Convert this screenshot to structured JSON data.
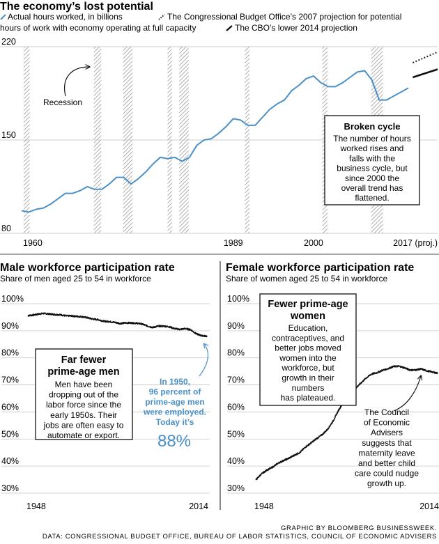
{
  "title": "The economy’s lost potential",
  "legend": [
    {
      "key": "actual",
      "label": "Actual hours worked, in billions",
      "color": "#4a90c8"
    },
    {
      "key": "cbo2007",
      "label": "The Congressional Budget Office’s 2007 projection for potential hours of work with economy operating at full capacity",
      "color": "#111111"
    },
    {
      "key": "cbo2014",
      "label": "The CBO’s lower 2014 projection",
      "color": "#111111"
    }
  ],
  "legend_lines": [
    "Actual hours worked, in billions",
    "The Congressional Budget Office’s 2007 projection for potential",
    "hours of work with economy operating at full capacity",
    "The CBO’s lower 2014 projection"
  ],
  "recession_label": "Recession",
  "callout_hours": {
    "title": "Broken cycle",
    "lines": [
      "The number of hours",
      "worked rises and",
      "falls with the",
      "business cycle, but",
      "since 2000 the",
      "overall trend has",
      "flattened."
    ]
  },
  "callout_male": {
    "title_lines": [
      "Far fewer",
      "prime-age men"
    ],
    "lines": [
      "Men have been",
      "dropping out of the",
      "labor force since the",
      "early 1950s. Their",
      "jobs are often easy to",
      "automate or export."
    ]
  },
  "note_male": {
    "lines": [
      "In 1950,",
      "96 percent of",
      "prime-age men",
      "were employed.",
      "Today it’s"
    ],
    "big": "88%",
    "color": "#4a90c8"
  },
  "callout_female": {
    "title_lines": [
      "Fewer prime-age",
      "women"
    ],
    "lines": [
      "Education,",
      "contraceptives, and",
      "better jobs moved",
      "women into the",
      "workforce, but",
      "growth in their",
      "numbers",
      "has plateaued."
    ]
  },
  "note_female": {
    "lines": [
      "The Council",
      "of Economic",
      "Advisers",
      "suggests that",
      "maternity leave",
      "and better child",
      "care could nudge",
      "growth up."
    ]
  },
  "credit": {
    "graphic": "GRAPHIC BY BLOOMBERG BUSINESSWEEK.",
    "data": "DATA: CONGRESSIONAL BUDGET OFFICE, BUREAU OF LABOR STATISTICS, COUNCIL OF ECONOMIC ADVISERS"
  },
  "chart_data": [
    {
      "type": "line",
      "title": "The economy’s lost potential",
      "ylabel": "",
      "xlabel": "",
      "xlim": [
        1960,
        2017
      ],
      "ylim": [
        80,
        220
      ],
      "yticks": [
        80,
        150,
        220
      ],
      "xtick_labels": [
        {
          "x": 1960,
          "label": "1960"
        },
        {
          "x": 1989,
          "label": "1989"
        },
        {
          "x": 2000,
          "label": "2000"
        },
        {
          "x": 2017,
          "label": "2017 (proj.)"
        }
      ],
      "recessions": [
        [
          1960.3,
          1961.1
        ],
        [
          1969.9,
          1970.9
        ],
        [
          1973.9,
          1975.2
        ],
        [
          1980.0,
          1980.6
        ],
        [
          1981.6,
          1982.9
        ],
        [
          1990.6,
          1991.2
        ],
        [
          2001.2,
          2001.9
        ],
        [
          2007.9,
          2009.5
        ]
      ],
      "series": [
        {
          "name": "Actual hours worked, in billions",
          "style": "solid",
          "color": "#4a90c8",
          "x": [
            1960,
            1961,
            1962,
            1963,
            1964,
            1965,
            1966,
            1967,
            1968,
            1969,
            1970,
            1971,
            1972,
            1973,
            1974,
            1975,
            1976,
            1977,
            1978,
            1979,
            1980,
            1981,
            1982,
            1983,
            1984,
            1985,
            1986,
            1987,
            1988,
            1989,
            1990,
            1991,
            1992,
            1993,
            1994,
            1995,
            1996,
            1997,
            1998,
            1999,
            2000,
            2001,
            2002,
            2003,
            2004,
            2005,
            2006,
            2007,
            2008,
            2009,
            2010,
            2011,
            2012,
            2013
          ],
          "y": [
            97,
            96,
            98,
            99,
            102,
            106,
            110,
            110,
            112,
            115,
            113,
            113,
            117,
            122,
            122,
            117,
            121,
            126,
            132,
            137,
            136,
            137,
            134,
            137,
            146,
            150,
            151,
            155,
            160,
            166,
            165,
            161,
            161,
            167,
            173,
            177,
            180,
            187,
            191,
            196,
            198,
            193,
            190,
            190,
            193,
            197,
            201,
            202,
            195,
            180,
            180,
            183,
            186,
            189
          ]
        },
        {
          "name": "The Congressional Budget Office’s 2007 projection for potential hours of work with economy operating at full capacity",
          "style": "dotted",
          "color": "#111111",
          "x": [
            2013.6,
            2017
          ],
          "y": [
            208,
            216
          ]
        },
        {
          "name": "The CBO’s lower 2014 projection",
          "style": "solid-bold",
          "color": "#111111",
          "x": [
            2013.6,
            2017
          ],
          "y": [
            197,
            203
          ]
        }
      ]
    },
    {
      "type": "line",
      "title": "Male workforce participation rate",
      "subtitle": "Share of men aged 25 to 54 in workforce",
      "xlim": [
        1948,
        2014
      ],
      "ylim": [
        30,
        100
      ],
      "yticks": [
        30,
        40,
        50,
        60,
        70,
        80,
        90,
        100
      ],
      "ytick_labels": [
        "30%",
        "40%",
        "50%",
        "60%",
        "70%",
        "80%",
        "90%",
        "100%"
      ],
      "xtick_labels": [
        {
          "x": 1948,
          "label": "1948"
        },
        {
          "x": 2014,
          "label": "2014"
        }
      ],
      "series": [
        {
          "name": "",
          "color": "#111111",
          "x": [
            1948,
            1950,
            1952,
            1954,
            1956,
            1958,
            1960,
            1962,
            1964,
            1966,
            1968,
            1970,
            1972,
            1974,
            1976,
            1978,
            1980,
            1982,
            1984,
            1986,
            1988,
            1990,
            1992,
            1994,
            1996,
            1998,
            2000,
            2002,
            2004,
            2006,
            2008,
            2010,
            2012,
            2014
          ],
          "y": [
            95.6,
            95.8,
            96.2,
            96.4,
            96.2,
            96.0,
            95.9,
            95.5,
            95.5,
            95.3,
            95.2,
            94.8,
            94.3,
            94.1,
            93.5,
            93.4,
            93.1,
            92.7,
            92.9,
            92.9,
            92.8,
            92.5,
            91.8,
            91.2,
            91.7,
            91.7,
            91.5,
            90.8,
            90.5,
            90.8,
            90.4,
            88.9,
            88.2,
            88.0
          ]
        }
      ]
    },
    {
      "type": "line",
      "title": "Female workforce participation rate",
      "subtitle": "Share of women aged 25 to 54 in workforce",
      "xlim": [
        1948,
        2014
      ],
      "ylim": [
        30,
        100
      ],
      "yticks": [
        30,
        40,
        50,
        60,
        70,
        80,
        90,
        100
      ],
      "ytick_labels": [
        "30%",
        "40%",
        "50%",
        "60%",
        "70%",
        "80%",
        "90%",
        "100%"
      ],
      "xtick_labels": [
        {
          "x": 1948,
          "label": "1948"
        },
        {
          "x": 2014,
          "label": "2014"
        }
      ],
      "series": [
        {
          "name": "",
          "color": "#111111",
          "x": [
            1948,
            1950,
            1952,
            1954,
            1956,
            1958,
            1960,
            1962,
            1964,
            1966,
            1968,
            1970,
            1972,
            1974,
            1976,
            1978,
            1980,
            1982,
            1984,
            1986,
            1988,
            1990,
            1992,
            1994,
            1996,
            1998,
            2000,
            2002,
            2004,
            2006,
            2008,
            2010,
            2012,
            2014
          ],
          "y": [
            34.9,
            37.0,
            38.5,
            39.5,
            41.0,
            42.0,
            42.9,
            44.0,
            45.0,
            47.0,
            48.5,
            50.1,
            51.5,
            53.5,
            56.5,
            60.5,
            64.0,
            66.3,
            68.5,
            70.5,
            72.5,
            74.0,
            74.5,
            75.4,
            76.0,
            76.8,
            76.9,
            76.3,
            75.5,
            75.5,
            75.9,
            75.2,
            74.8,
            74.3
          ]
        }
      ]
    }
  ]
}
